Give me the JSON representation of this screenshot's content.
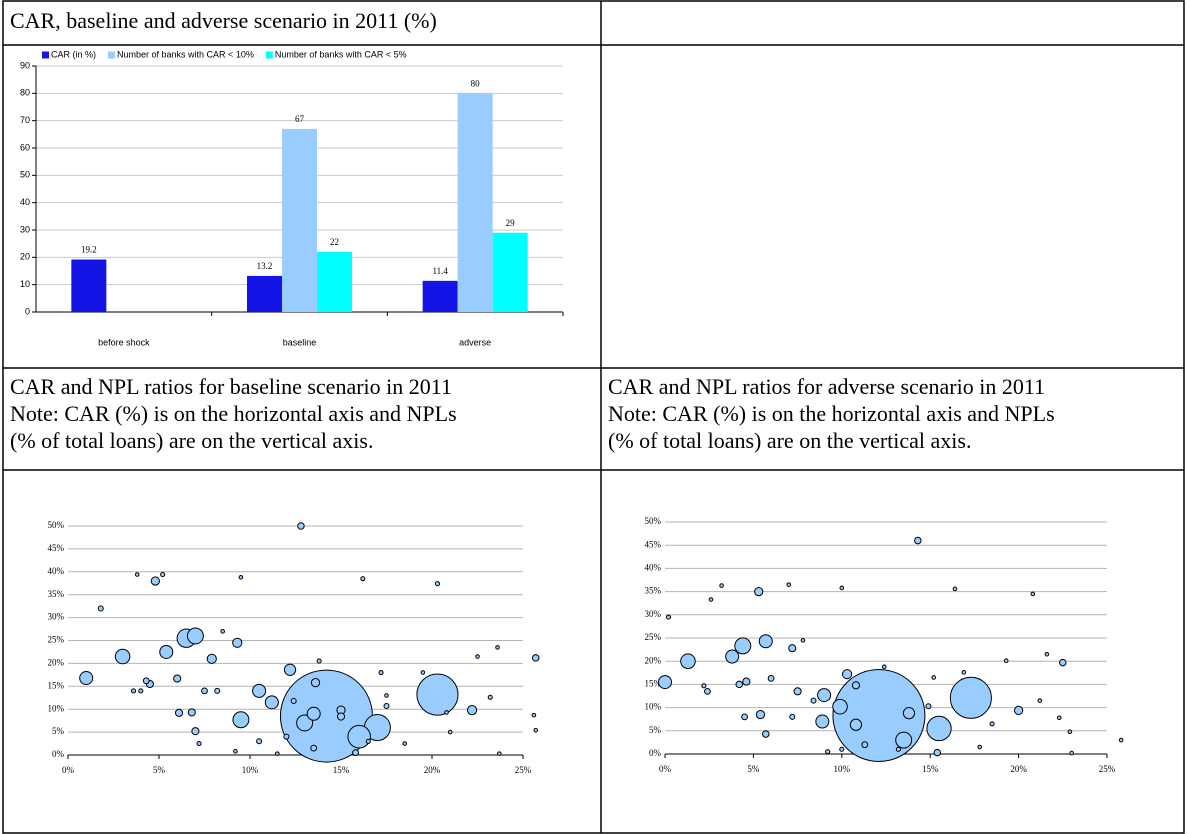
{
  "cells": {
    "top_left": "CAR, baseline and adverse scenario in 2011 (%)",
    "mid_left": [
      "CAR and NPL ratios for baseline scenario in 2011",
      "Note: CAR (%) is on the horizontal axis and NPLs",
      "(% of total loans) are on the vertical axis."
    ],
    "mid_right": [
      "CAR and NPL ratios for adverse scenario in 2011",
      "Note: CAR (%) is on the horizontal axis and NPLs",
      "(% of total loans) are on the vertical axis."
    ]
  },
  "chart_data": [
    {
      "type": "bar",
      "categories": [
        "before shock",
        "baseline",
        "adverse"
      ],
      "series": [
        {
          "name": "CAR (in %)",
          "color": "#1414e6",
          "values": [
            19.2,
            13.2,
            11.4
          ]
        },
        {
          "name": "Number of banks with CAR < 10%",
          "color": "#99ccff",
          "values": [
            null,
            67,
            80
          ]
        },
        {
          "name": "Number of banks with CAR < 5%",
          "color": "#00ffff",
          "values": [
            null,
            22,
            29
          ]
        }
      ],
      "ylim": [
        0,
        90
      ],
      "yticks": [
        0,
        10,
        20,
        30,
        40,
        50,
        60,
        70,
        80,
        90
      ],
      "grid": true,
      "legend": "top"
    },
    {
      "type": "bubble",
      "color": "#99ccff",
      "x": [
        14.2,
        20.3,
        17,
        16,
        6.5,
        7,
        1,
        3,
        5.4,
        9.5,
        10.5,
        11.2,
        12.2,
        13,
        13.5,
        12.8,
        25.7,
        22.2,
        4.8,
        5.2,
        1.8,
        3.8,
        9.5,
        16.2,
        20.3,
        9.3,
        7.9,
        6.1,
        4.5,
        4.3,
        6,
        7.5,
        6.8,
        7,
        8.2,
        15,
        15,
        12.4,
        13.6,
        13.8,
        17.5,
        17.2,
        19.5,
        22.5,
        23.6,
        23.2,
        23.7,
        25.6,
        25.7,
        20.8,
        21,
        9.2,
        11.5,
        13.5,
        15.8,
        12,
        10.5,
        18.5,
        16.5,
        8.5,
        4,
        3.6,
        7.2,
        17.5
      ],
      "y": [
        8.5,
        13.2,
        6,
        4,
        25.5,
        26,
        16.8,
        21.5,
        22.5,
        7.7,
        14,
        11.5,
        18.6,
        7,
        9,
        50,
        21.2,
        9.8,
        38,
        39.4,
        32,
        39.4,
        38.8,
        38.5,
        37.4,
        24.5,
        21,
        9.2,
        15.5,
        16.2,
        16.7,
        14,
        9.3,
        5.2,
        14,
        9.8,
        8.4,
        11.8,
        15.8,
        20.5,
        10.7,
        18,
        18,
        21.5,
        23.5,
        12.6,
        0.3,
        8.7,
        5.4,
        9.3,
        5,
        0.8,
        0.3,
        1.5,
        0.5,
        4,
        3,
        2.5,
        3,
        27,
        14,
        14,
        2.5,
        13
      ],
      "sizes": [
        100,
        20,
        8,
        6,
        4,
        3,
        2,
        2.5,
        2,
        3,
        2,
        2,
        1.5,
        3,
        2,
        0.5,
        0.5,
        1,
        0.8,
        0.2,
        0.3,
        0.1,
        0.1,
        0.2,
        0.2,
        1,
        1,
        0.6,
        0.6,
        0.4,
        0.6,
        0.4,
        0.6,
        0.6,
        0.3,
        0.8,
        0.6,
        0.3,
        0.8,
        0.2,
        0.3,
        0.2,
        0.1,
        0.1,
        0.1,
        0.2,
        0.1,
        0.1,
        0.1,
        0.1,
        0.1,
        0.1,
        0.1,
        0.4,
        0.4,
        0.3,
        0.3,
        0.1,
        0.2,
        0.1,
        0.2,
        0.2,
        0.2,
        0.1
      ],
      "xlim": [
        0,
        25
      ],
      "ylim": [
        0,
        50
      ],
      "xticks": [
        {
          "value": 0,
          "label": "0%"
        },
        {
          "value": 5,
          "label": "5%"
        },
        {
          "value": 10,
          "label": "10%"
        },
        {
          "value": 15,
          "label": "15%"
        },
        {
          "value": 20,
          "label": "20%"
        },
        {
          "value": 25,
          "label": "25%"
        }
      ],
      "yticks": [
        {
          "value": 0,
          "label": "0%"
        },
        {
          "value": 5,
          "label": "5%"
        },
        {
          "value": 10,
          "label": "10%"
        },
        {
          "value": 15,
          "label": "15%"
        },
        {
          "value": 20,
          "label": "20%"
        },
        {
          "value": 25,
          "label": "25%"
        },
        {
          "value": 30,
          "label": "30%"
        },
        {
          "value": 35,
          "label": "35%"
        },
        {
          "value": 40,
          "label": "40%"
        },
        {
          "value": 45,
          "label": "45%"
        },
        {
          "value": 50,
          "label": "50%"
        }
      ],
      "grid": true
    },
    {
      "type": "bubble",
      "color": "#99ccff",
      "x": [
        12.1,
        17.3,
        15.5,
        0,
        1.3,
        3.8,
        4.4,
        5.7,
        9,
        8.9,
        9.9,
        10.8,
        13.5,
        13.8,
        14.3,
        5.3,
        7,
        10,
        16.4,
        20.8,
        3.2,
        0.2,
        2.6,
        22.5,
        20,
        10.3,
        10.8,
        7.2,
        6,
        4.6,
        4.2,
        5.4,
        5.7,
        4.5,
        7.2,
        7.5,
        11.3,
        13.2,
        15.4,
        14.9,
        15.2,
        19.3,
        21.6,
        22.3,
        22.9,
        23,
        25.8,
        21.2,
        18.5,
        17.8,
        9.2,
        10,
        2.2,
        2.4,
        7.8,
        8.4,
        16.9,
        12.4
      ],
      "y": [
        8.3,
        12.1,
        5.5,
        15.5,
        20,
        21,
        23.3,
        24.3,
        12.7,
        7,
        10.2,
        6.3,
        3,
        8.8,
        46,
        35,
        36.5,
        35.8,
        35.6,
        34.5,
        36.3,
        29.5,
        33.3,
        19.7,
        9.4,
        17.2,
        14.8,
        22.8,
        16.3,
        15.6,
        15,
        8.5,
        4.3,
        8,
        8,
        13.5,
        2,
        1,
        0.3,
        10.3,
        16.5,
        20.1,
        21.5,
        7.8,
        4.8,
        0.2,
        3,
        11.5,
        6.5,
        1.5,
        0.5,
        1,
        14.7,
        13.5,
        24.5,
        11.5,
        17.6,
        18.8
      ],
      "sizes": [
        100,
        20,
        7,
        2,
        2.5,
        2,
        3,
        2,
        2,
        2,
        2.5,
        1.5,
        3,
        1.5,
        0.5,
        0.8,
        0.1,
        0.1,
        0.1,
        0.1,
        0.1,
        0.2,
        0.1,
        0.5,
        0.8,
        1,
        0.6,
        0.6,
        0.4,
        0.6,
        0.5,
        0.8,
        0.5,
        0.4,
        0.3,
        0.6,
        0.4,
        0.2,
        0.5,
        0.3,
        0.1,
        0.1,
        0.1,
        0.1,
        0.1,
        0.1,
        0.1,
        0.1,
        0.2,
        0.1,
        0.2,
        0.2,
        0.2,
        0.4,
        0.1,
        0.3,
        0.1,
        0.1
      ],
      "xlim": [
        0,
        25
      ],
      "ylim": [
        0,
        50
      ],
      "xticks": [
        {
          "value": 0,
          "label": "0%"
        },
        {
          "value": 5,
          "label": "5%"
        },
        {
          "value": 10,
          "label": "10%"
        },
        {
          "value": 15,
          "label": "15%"
        },
        {
          "value": 20,
          "label": "20%"
        },
        {
          "value": 25,
          "label": "25%"
        }
      ],
      "yticks": [
        {
          "value": 0,
          "label": "0%"
        },
        {
          "value": 5,
          "label": "5%"
        },
        {
          "value": 10,
          "label": "10%"
        },
        {
          "value": 15,
          "label": "15%"
        },
        {
          "value": 20,
          "label": "20%"
        },
        {
          "value": 25,
          "label": "25%"
        },
        {
          "value": 30,
          "label": "30%"
        },
        {
          "value": 35,
          "label": "35%"
        },
        {
          "value": 40,
          "label": "40%"
        },
        {
          "value": 45,
          "label": "45%"
        },
        {
          "value": 50,
          "label": "50%"
        }
      ],
      "grid": true
    }
  ]
}
